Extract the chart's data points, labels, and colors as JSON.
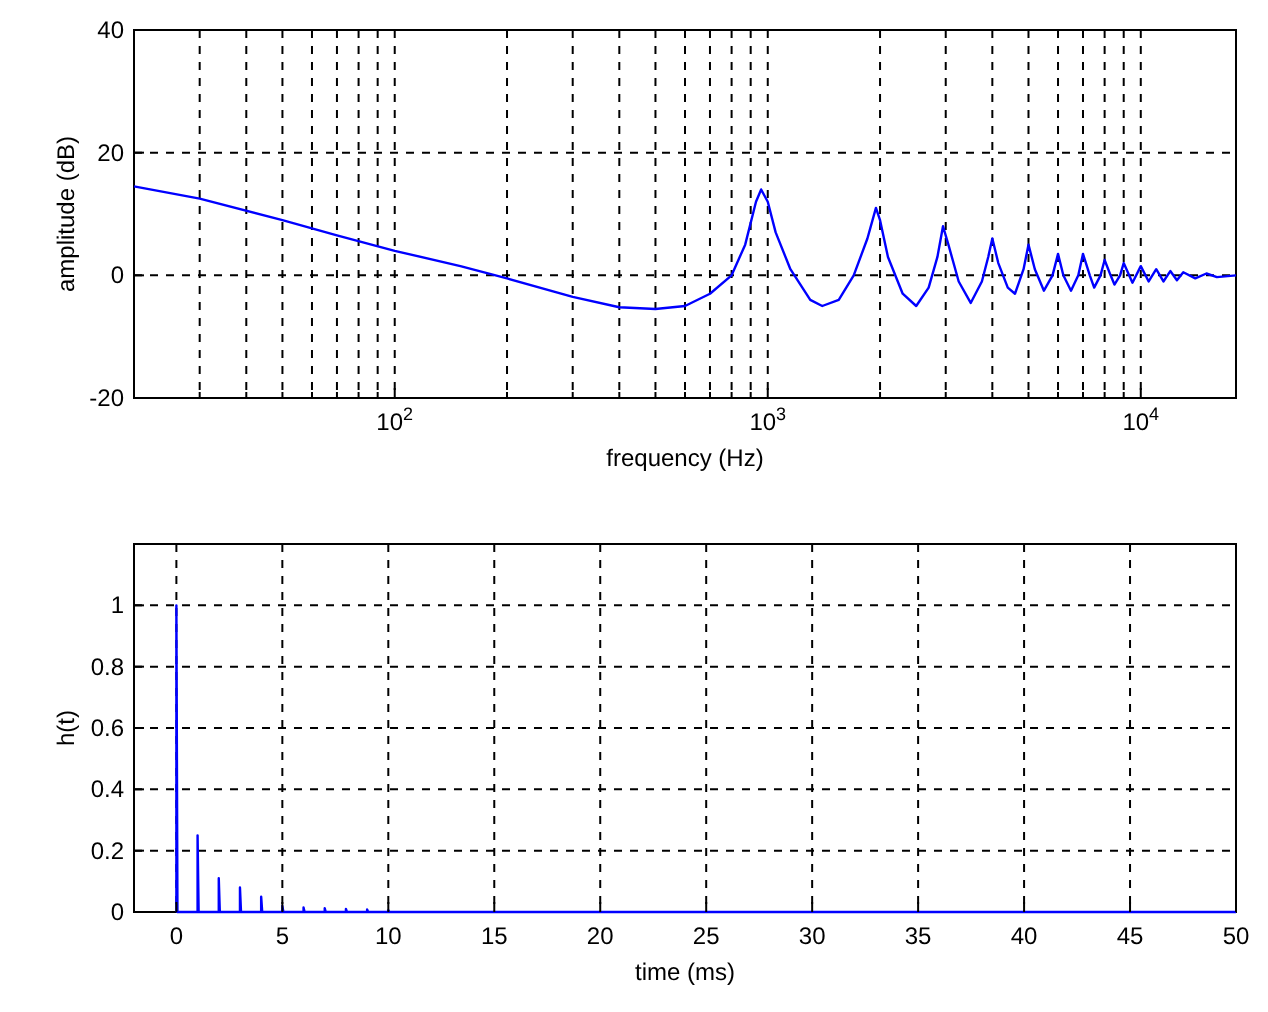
{
  "chart_data": [
    {
      "type": "line",
      "xlabel": "frequency (Hz)",
      "ylabel": "amplitude (dB)",
      "log": "x",
      "grid": true,
      "line_style": "solid",
      "color": "#0000ff",
      "xlim": [
        20,
        18000
      ],
      "ylim": [
        -20,
        40
      ],
      "xticks": [
        {
          "value": 30,
          "label": null
        },
        {
          "value": 40,
          "label": null
        },
        {
          "value": 50,
          "label": null
        },
        {
          "value": 60,
          "label": null
        },
        {
          "value": 70,
          "label": null
        },
        {
          "value": 80,
          "label": null
        },
        {
          "value": 90,
          "label": null
        },
        {
          "value": 100,
          "label": "10$^{2}$"
        },
        {
          "value": 200,
          "label": null
        },
        {
          "value": 300,
          "label": null
        },
        {
          "value": 400,
          "label": null
        },
        {
          "value": 500,
          "label": null
        },
        {
          "value": 600,
          "label": null
        },
        {
          "value": 700,
          "label": null
        },
        {
          "value": 800,
          "label": null
        },
        {
          "value": 900,
          "label": null
        },
        {
          "value": 1000,
          "label": "10$^{3}$"
        },
        {
          "value": 2000,
          "label": null
        },
        {
          "value": 3000,
          "label": null
        },
        {
          "value": 4000,
          "label": null
        },
        {
          "value": 5000,
          "label": null
        },
        {
          "value": 6000,
          "label": null
        },
        {
          "value": 7000,
          "label": null
        },
        {
          "value": 8000,
          "label": null
        },
        {
          "value": 9000,
          "label": null
        },
        {
          "value": 10000,
          "label": "10$^{4}$"
        }
      ],
      "yticks": [
        -20,
        0,
        20,
        40
      ],
      "x": [
        20,
        30,
        50,
        70,
        100,
        150,
        200,
        300,
        400,
        500,
        600,
        700,
        800,
        870,
        930,
        960,
        1000,
        1050,
        1150,
        1300,
        1400,
        1550,
        1700,
        1850,
        1950,
        2000,
        2100,
        2300,
        2500,
        2700,
        2850,
        2950,
        3050,
        3250,
        3500,
        3750,
        3900,
        4000,
        4150,
        4400,
        4600,
        4850,
        5000,
        5200,
        5500,
        5800,
        6000,
        6200,
        6500,
        6800,
        7000,
        7300,
        7500,
        7800,
        8000,
        8300,
        8500,
        8800,
        9000,
        9500,
        10000,
        10500,
        11000,
        11500,
        12000,
        12500,
        13000,
        14000,
        15000,
        16000,
        18000
      ],
      "values": [
        14.5,
        12.5,
        9,
        6.5,
        4,
        1.5,
        -0.5,
        -3.5,
        -5.2,
        -5.5,
        -5,
        -3,
        0,
        5,
        12,
        14,
        12,
        7,
        1,
        -4,
        -5,
        -4,
        0,
        6,
        11,
        9,
        3,
        -3,
        -5,
        -2,
        3,
        8,
        5,
        -1,
        -4.5,
        -1,
        3,
        6,
        2,
        -2,
        -3,
        1,
        5,
        1,
        -2.5,
        0,
        3.5,
        0,
        -2.5,
        0,
        3.5,
        0,
        -2,
        0,
        2.5,
        0,
        -1.5,
        0,
        2,
        -1.2,
        1.5,
        -1,
        1,
        -1,
        0.7,
        -0.8,
        0.5,
        -0.5,
        0.3,
        -0.3,
        0
      ]
    },
    {
      "type": "line",
      "xlabel": "time (ms)",
      "ylabel": "h(t)",
      "grid": true,
      "line_style": "solid",
      "color": "#0000ff",
      "xlim": [
        -2,
        50
      ],
      "ylim": [
        0,
        1.2
      ],
      "xticks": [
        0,
        5,
        10,
        15,
        20,
        25,
        30,
        35,
        40,
        45,
        50
      ],
      "yticks": [
        0,
        0.2,
        0.4,
        0.6,
        0.8,
        1
      ],
      "x": [
        0,
        0,
        0.05,
        1,
        1,
        1.05,
        2,
        2,
        2.05,
        3,
        3,
        3.05,
        4,
        4,
        4.05,
        5,
        5,
        5.05,
        6,
        6,
        6.05,
        7,
        7,
        7.05,
        8,
        8,
        8.05,
        9,
        9,
        9.05,
        10,
        10,
        10.05,
        50
      ],
      "values": [
        0,
        1,
        0,
        0,
        0.25,
        0,
        0,
        0.11,
        0,
        0,
        0.08,
        0,
        0,
        0.05,
        0,
        0,
        0.02,
        0,
        0,
        0.015,
        0,
        0,
        0.012,
        0,
        0,
        0.01,
        0,
        0,
        0.008,
        0,
        0,
        0.006,
        0,
        0
      ]
    }
  ]
}
